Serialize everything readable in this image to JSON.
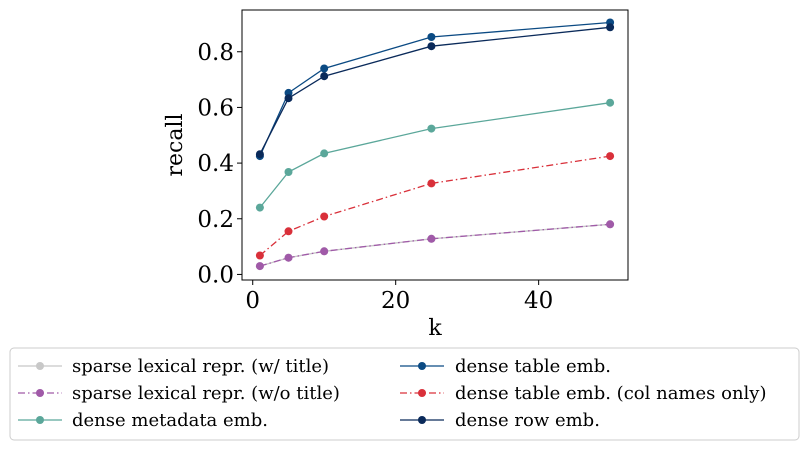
{
  "chart_data": {
    "type": "line",
    "xlabel": "k",
    "ylabel": "recall",
    "xlim": [
      -1.5,
      52.5
    ],
    "ylim": [
      -0.02,
      0.95
    ],
    "xticks": [
      0,
      20,
      40
    ],
    "yticks": [
      0.0,
      0.2,
      0.4,
      0.6,
      0.8
    ],
    "xtick_labels": [
      "0",
      "20",
      "40"
    ],
    "ytick_labels": [
      "0.0",
      "0.2",
      "0.4",
      "0.6",
      "0.8"
    ],
    "grid": false,
    "legend_placement": "below",
    "x": [
      1,
      5,
      10,
      25,
      50
    ],
    "series": [
      {
        "name": "sparse lexical repr. (w/ title)",
        "values": [
          0.03,
          0.06,
          0.083,
          0.128,
          0.18
        ],
        "color": "#c8c8c8",
        "dash": "solid"
      },
      {
        "name": "sparse lexical repr. (w/o title)",
        "values": [
          0.03,
          0.06,
          0.083,
          0.128,
          0.18
        ],
        "color": "#a05aa8",
        "dash": "dashdot"
      },
      {
        "name": "dense metadata emb.",
        "values": [
          0.24,
          0.368,
          0.435,
          0.524,
          0.617
        ],
        "color": "#5ba79a",
        "dash": "solid"
      },
      {
        "name": "dense table emb.",
        "values": [
          0.425,
          0.652,
          0.74,
          0.853,
          0.905
        ],
        "color": "#0b4a83",
        "dash": "solid"
      },
      {
        "name": "dense table emb. (col names only)",
        "values": [
          0.068,
          0.155,
          0.208,
          0.327,
          0.425
        ],
        "color": "#d9303a",
        "dash": "dashdot"
      },
      {
        "name": "dense row emb.",
        "values": [
          0.432,
          0.633,
          0.712,
          0.82,
          0.888
        ],
        "color": "#0a2a5a",
        "dash": "solid"
      }
    ]
  }
}
